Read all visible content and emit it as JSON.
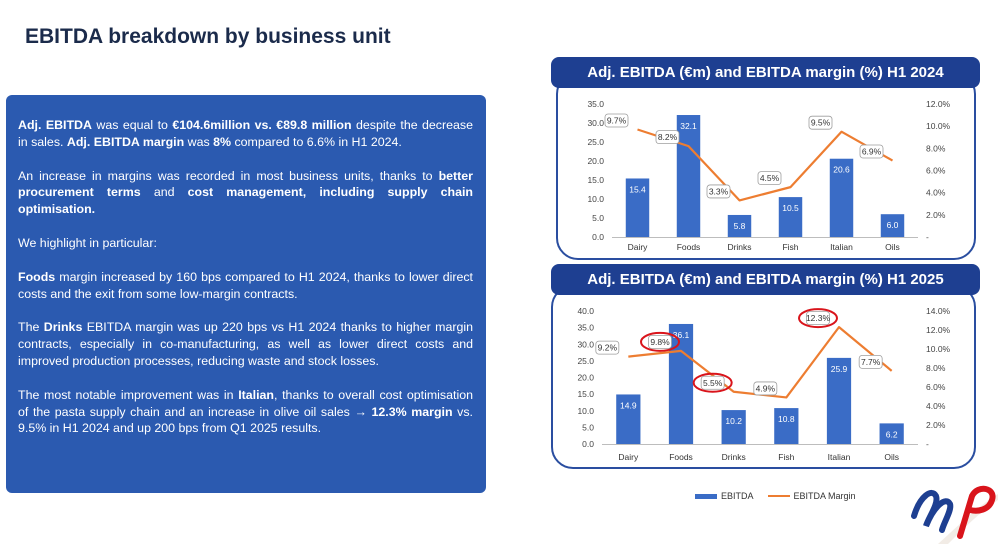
{
  "page": {
    "title": "EBITDA breakdown by business unit"
  },
  "text": {
    "p1": {
      "b1": "Adj. EBITDA",
      "t1": " was equal to ",
      "b2": "€104.6million vs. €89.8 million",
      "t2": " despite the decrease in sales. ",
      "b3": "Adj. EBITDA margin",
      "t3": " was ",
      "b4": "8%",
      "t4": " compared to 6.6% in H1 2024."
    },
    "p2": {
      "t1": "An increase in margins was recorded in most business units, thanks to ",
      "b1": "better procurement terms",
      "t2": " and ",
      "b2": "cost management, including supply chain optimisation."
    },
    "p3": {
      "t1": "We highlight in particular:"
    },
    "p4": {
      "b1": "Foods",
      "t1": " margin increased by 160 bps compared to H1 2024, thanks to lower direct costs and the exit from some low-margin contracts."
    },
    "p5": {
      "t1": "The ",
      "b1": "Drinks",
      "t2": " EBITDA margin was up 220 bps vs H1 2024 thanks to higher margin contracts, especially in co-manufacturing, as well as lower direct costs and improved production processes, reducing waste and stock losses."
    },
    "p6": {
      "t1": "The most notable improvement was in ",
      "b1": "Italian",
      "t2": ", thanks to overall cost optimisation of the pasta supply chain and an increase in olive oil sales → ",
      "b2": "12.3% margin",
      "t3": " vs. 9.5% in H1 2024 and up 200 bps from Q1 2025 results."
    }
  },
  "legend": {
    "ebitda": "EBITDA",
    "margin": "EBITDA Margin"
  },
  "colors": {
    "bar": "#3a6cc6",
    "line": "#ed7d31",
    "title_bg": "#1e3f91",
    "frame": "#2a4ea0",
    "textbox": "#2b5ab0",
    "highlight": "#d9141b"
  },
  "chart_data": [
    {
      "type": "bar",
      "title": "Adj. EBITDA (€m) and EBITDA margin (%) H1 2024",
      "categories": [
        "Dairy",
        "Foods",
        "Drinks",
        "Fish",
        "Italian",
        "Oils"
      ],
      "series": [
        {
          "name": "EBITDA",
          "type": "bar",
          "axis": "left",
          "values": [
            15.4,
            32.1,
            5.8,
            10.5,
            20.6,
            6.0
          ],
          "labels": [
            "15.4",
            "32.1",
            "5.8",
            "10.5",
            "20.6",
            "6.0"
          ]
        },
        {
          "name": "EBITDA Margin",
          "type": "line",
          "axis": "right",
          "values": [
            9.7,
            8.2,
            3.3,
            4.5,
            9.5,
            6.9
          ],
          "labels": [
            "9.7%",
            "8.2%",
            "3.3%",
            "4.5%",
            "9.5%",
            "6.9%"
          ]
        }
      ],
      "ylim_left": [
        0,
        35
      ],
      "ylim_right": [
        0,
        12
      ],
      "left_ticks": [
        "0.0",
        "5.0",
        "10.0",
        "15.0",
        "20.0",
        "25.0",
        "30.0",
        "35.0"
      ],
      "right_ticks": [
        "-",
        "2.0%",
        "4.0%",
        "6.0%",
        "8.0%",
        "10.0%",
        "12.0%"
      ],
      "highlighted": []
    },
    {
      "type": "bar",
      "title": "Adj. EBITDA (€m) and EBITDA margin (%) H1 2025",
      "categories": [
        "Dairy",
        "Foods",
        "Drinks",
        "Fish",
        "Italian",
        "Oils"
      ],
      "series": [
        {
          "name": "EBITDA",
          "type": "bar",
          "axis": "left",
          "values": [
            14.9,
            36.1,
            10.2,
            10.8,
            25.9,
            6.2
          ],
          "labels": [
            "14.9",
            "36.1",
            "10.2",
            "10.8",
            "25.9",
            "6.2"
          ]
        },
        {
          "name": "EBITDA Margin",
          "type": "line",
          "axis": "right",
          "values": [
            9.2,
            9.8,
            5.5,
            4.9,
            12.3,
            7.7
          ],
          "labels": [
            "9.2%",
            "9.8%",
            "5.5%",
            "4.9%",
            "12.3%",
            "7.7%"
          ]
        }
      ],
      "ylim_left": [
        0,
        40
      ],
      "ylim_right": [
        0,
        14
      ],
      "left_ticks": [
        "0.0",
        "5.0",
        "10.0",
        "15.0",
        "20.0",
        "25.0",
        "30.0",
        "35.0",
        "40.0"
      ],
      "right_ticks": [
        "-",
        "2.0%",
        "4.0%",
        "6.0%",
        "8.0%",
        "10.0%",
        "12.0%",
        "14.0%"
      ],
      "highlighted": [
        "Foods",
        "Drinks",
        "Italian"
      ]
    }
  ]
}
